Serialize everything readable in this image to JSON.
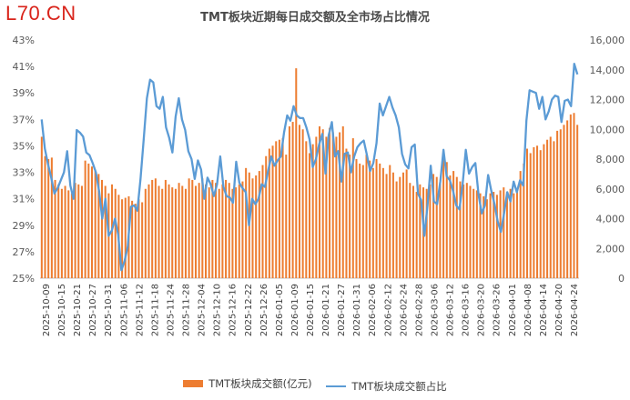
{
  "watermark": "L70.CN",
  "chart_data": {
    "type": "bar+line",
    "title": "TMT板块近期每日成交额及全市场占比情况",
    "left_axis": {
      "ylim": [
        25,
        43
      ],
      "ticks": [
        "43%",
        "41%",
        "39%",
        "37%",
        "35%",
        "33%",
        "31%",
        "29%",
        "27%",
        "25%"
      ],
      "unit": "%"
    },
    "right_axis": {
      "ylim": [
        0,
        16000
      ],
      "ticks": [
        "16,000",
        "14,000",
        "12,000",
        "10,000",
        "8,000",
        "6,000",
        "4,000",
        "2,000",
        "0"
      ]
    },
    "x_tick_labels": [
      "2025-10-09",
      "2025-10-15",
      "2025-10-21",
      "2025-10-27",
      "2025-10-31",
      "2025-11-06",
      "2025-11-12",
      "2025-11-18",
      "2025-11-24",
      "2025-11-28",
      "2025-12-04",
      "2025-12-10",
      "2025-12-16",
      "2025-12-22",
      "2025-12-26",
      "2026-01-05",
      "2026-01-09",
      "2026-01-15",
      "2026-01-21",
      "2026-01-27",
      "2026-01-31",
      "2026-02-06",
      "2026-02-12",
      "2026-02-24",
      "2026-02-28",
      "2026-03-06",
      "2026-03-12",
      "2026-03-16",
      "2026-03-20",
      "2026-03-26",
      "2026-04-01",
      "2026-04-08",
      "2026-04-14",
      "2026-04-20",
      "2026-04-24"
    ],
    "series": [
      {
        "name": "TMT板块成交额(亿元)",
        "type": "bar",
        "axis": "right",
        "color": "#ed7d31",
        "values": [
          9500,
          8200,
          8000,
          8100,
          6600,
          6300,
          6000,
          6200,
          5900,
          5700,
          6400,
          6300,
          6200,
          7900,
          7700,
          7500,
          7200,
          7000,
          6600,
          6200,
          5700,
          6300,
          6000,
          5600,
          5300,
          5400,
          5500,
          5200,
          5000,
          5300,
          5100,
          6000,
          6300,
          6600,
          6700,
          6200,
          6000,
          6600,
          6300,
          6100,
          6000,
          6400,
          6200,
          6000,
          6700,
          6600,
          6200,
          6400,
          6700,
          6300,
          6100,
          6600,
          6400,
          6000,
          6300,
          6600,
          6400,
          6000,
          6100,
          6300,
          6500,
          7400,
          7100,
          6700,
          6900,
          7200,
          7600,
          8200,
          8700,
          8900,
          9200,
          9300,
          9400,
          8300,
          10200,
          10500,
          14100,
          10300,
          10000,
          9200,
          8400,
          9000,
          9500,
          10200,
          10000,
          9500,
          10100,
          9800,
          9500,
          9800,
          10200,
          8700,
          8300,
          9400,
          8000,
          7700,
          7600,
          8300,
          7900,
          7400,
          8000,
          7700,
          7400,
          7000,
          7600,
          7100,
          6500,
          6800,
          7100,
          7300,
          6400,
          6200,
          5800,
          6300,
          6100,
          6000,
          6300,
          7000,
          6800,
          6400,
          8000,
          7800,
          6900,
          7200,
          6800,
          6500,
          6300,
          6400,
          6200,
          6000,
          5900,
          5700,
          5500,
          5300,
          5700,
          5800,
          5600,
          5900,
          6100,
          5800,
          6000,
          5700,
          5800,
          7200,
          7700,
          8700,
          8400,
          8800,
          8900,
          8600,
          9000,
          9300,
          9500,
          9200,
          9900,
          10000,
          10300,
          10600,
          11000,
          11100,
          10300
        ]
      },
      {
        "name": "TMT板块成交额占比",
        "type": "line",
        "axis": "left",
        "color": "#5b9bd5",
        "values": [
          37.0,
          34.8,
          33.6,
          32.6,
          31.4,
          31.8,
          32.4,
          33.0,
          34.6,
          32.0,
          31.0,
          36.2,
          36.0,
          35.7,
          34.5,
          34.3,
          33.7,
          33.0,
          31.6,
          29.5,
          31.0,
          28.2,
          28.6,
          29.5,
          28.3,
          25.6,
          26.3,
          27.4,
          30.4,
          30.5,
          30.1,
          32.5,
          35.5,
          38.6,
          40.0,
          39.8,
          38.0,
          37.8,
          38.7,
          36.4,
          35.6,
          34.5,
          37.2,
          38.6,
          37.0,
          36.2,
          34.6,
          34.0,
          32.5,
          33.9,
          33.2,
          31.0,
          32.6,
          32.1,
          31.2,
          32.1,
          34.2,
          31.9,
          31.2,
          31.1,
          30.7,
          33.8,
          32.2,
          31.8,
          31.5,
          29.0,
          31.0,
          30.6,
          31.0,
          32.1,
          31.9,
          33.1,
          34.2,
          33.5,
          33.9,
          34.2,
          36.0,
          37.3,
          36.9,
          38.0,
          37.3,
          37.1,
          37.1,
          36.4,
          35.5,
          33.4,
          34.0,
          35.1,
          35.9,
          32.9,
          35.8,
          36.8,
          34.2,
          34.6,
          32.3,
          34.4,
          34.5,
          33.0,
          34.2,
          34.9,
          35.2,
          35.4,
          34.3,
          33.1,
          33.7,
          35.2,
          38.2,
          37.3,
          38.0,
          38.7,
          37.9,
          37.3,
          36.4,
          34.4,
          33.6,
          33.3,
          34.9,
          35.1,
          31.4,
          30.9,
          28.2,
          30.5,
          33.5,
          30.8,
          30.6,
          32.3,
          34.7,
          32.7,
          32.4,
          31.6,
          30.5,
          30.2,
          32.1,
          34.7,
          32.9,
          33.4,
          33.7,
          31.3,
          29.9,
          30.5,
          32.8,
          31.6,
          30.6,
          29.3,
          28.5,
          29.9,
          31.5,
          30.8,
          32.3,
          31.5,
          32.4,
          32.0,
          36.9,
          39.2,
          39.1,
          39.0,
          37.8,
          38.7,
          37.0,
          37.6,
          38.5,
          38.8,
          38.7,
          36.8,
          38.4,
          38.5,
          38.0,
          41.2,
          40.4
        ]
      }
    ],
    "legend_placement": "bottom",
    "grid": false
  }
}
